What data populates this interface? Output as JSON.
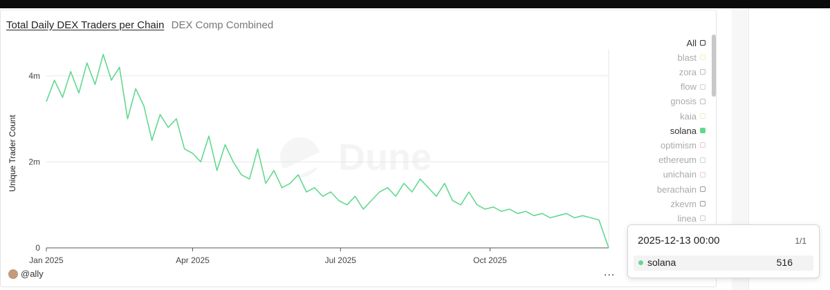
{
  "header": {
    "title": "Total Daily DEX Traders per Chain",
    "subtitle": "DEX Comp Combined"
  },
  "watermark": "Dune",
  "legend": {
    "items": [
      {
        "label": "All",
        "active": true,
        "color": "#333333"
      },
      {
        "label": "blast",
        "active": false,
        "color": "#f0f0c0"
      },
      {
        "label": "zora",
        "active": false,
        "color": "#bbbbbb"
      },
      {
        "label": "flow",
        "active": false,
        "color": "#cfcfcf"
      },
      {
        "label": "gnosis",
        "active": false,
        "color": "#bbbbbb"
      },
      {
        "label": "kaia",
        "active": false,
        "color": "#ecefc8"
      },
      {
        "label": "solana",
        "active": true,
        "color": "#62d88f"
      },
      {
        "label": "optimism",
        "active": false,
        "color": "#f2c4c4"
      },
      {
        "label": "ethereum",
        "active": false,
        "color": "#cfcfcf"
      },
      {
        "label": "unichain",
        "active": false,
        "color": "#f0c8d8"
      },
      {
        "label": "berachain",
        "active": false,
        "color": "#999999"
      },
      {
        "label": "zkevm",
        "active": false,
        "color": "#999999"
      },
      {
        "label": "linea",
        "active": false,
        "color": "#cccccc"
      }
    ]
  },
  "tooltip": {
    "date": "2025-12-13 00:00",
    "page": "1/1",
    "series": "solana",
    "value": "516"
  },
  "footer": {
    "author": "@ally",
    "more": "..."
  },
  "chart_data": {
    "type": "line",
    "title": "Total Daily DEX Traders per Chain",
    "subtitle": "DEX Comp Combined",
    "ylabel": "Unique Trader Count",
    "xlabel": "",
    "x_start": "2025-01-01",
    "x_end": "2025-12-13",
    "x_ticks": [
      {
        "label": "Jan 2025",
        "date": "2025-01-01"
      },
      {
        "label": "Apr 2025",
        "date": "2025-04-01"
      },
      {
        "label": "Jul 2025",
        "date": "2025-07-01"
      },
      {
        "label": "Oct 2025",
        "date": "2025-10-01"
      }
    ],
    "y_ticks": [
      {
        "label": "0",
        "value": 0
      },
      {
        "label": "2m",
        "value": 2000000
      },
      {
        "label": "4m",
        "value": 4000000
      }
    ],
    "ylim": [
      0,
      4800000
    ],
    "grid": true,
    "legend_position": "right",
    "series": [
      {
        "name": "solana",
        "color": "#62d88f",
        "x": [
          "2025-01-01",
          "2025-01-06",
          "2025-01-11",
          "2025-01-16",
          "2025-01-21",
          "2025-01-26",
          "2025-01-31",
          "2025-02-05",
          "2025-02-10",
          "2025-02-15",
          "2025-02-20",
          "2025-02-25",
          "2025-03-02",
          "2025-03-07",
          "2025-03-12",
          "2025-03-17",
          "2025-03-22",
          "2025-03-27",
          "2025-04-01",
          "2025-04-06",
          "2025-04-11",
          "2025-04-16",
          "2025-04-21",
          "2025-04-26",
          "2025-05-01",
          "2025-05-06",
          "2025-05-11",
          "2025-05-16",
          "2025-05-21",
          "2025-05-26",
          "2025-05-31",
          "2025-06-05",
          "2025-06-10",
          "2025-06-15",
          "2025-06-20",
          "2025-06-25",
          "2025-06-30",
          "2025-07-05",
          "2025-07-10",
          "2025-07-15",
          "2025-07-20",
          "2025-07-25",
          "2025-07-30",
          "2025-08-04",
          "2025-08-09",
          "2025-08-14",
          "2025-08-19",
          "2025-08-24",
          "2025-08-29",
          "2025-09-03",
          "2025-09-08",
          "2025-09-13",
          "2025-09-18",
          "2025-09-23",
          "2025-09-28",
          "2025-10-03",
          "2025-10-08",
          "2025-10-13",
          "2025-10-18",
          "2025-10-23",
          "2025-10-28",
          "2025-11-02",
          "2025-11-07",
          "2025-11-12",
          "2025-11-17",
          "2025-11-22",
          "2025-11-27",
          "2025-12-02",
          "2025-12-07",
          "2025-12-13"
        ],
        "y": [
          3400000,
          3900000,
          3500000,
          4100000,
          3600000,
          4300000,
          3800000,
          4500000,
          3900000,
          4200000,
          3000000,
          3700000,
          3300000,
          2500000,
          3100000,
          2800000,
          3000000,
          2300000,
          2200000,
          2000000,
          2600000,
          1800000,
          2400000,
          2000000,
          1700000,
          1600000,
          2300000,
          1500000,
          1800000,
          1400000,
          1500000,
          1700000,
          1300000,
          1400000,
          1200000,
          1300000,
          1100000,
          1000000,
          1200000,
          900000,
          1100000,
          1300000,
          1400000,
          1200000,
          1500000,
          1300000,
          1600000,
          1400000,
          1200000,
          1500000,
          1100000,
          1000000,
          1300000,
          1000000,
          900000,
          950000,
          850000,
          900000,
          800000,
          850000,
          750000,
          800000,
          700000,
          750000,
          800000,
          700000,
          750000,
          700000,
          650000,
          516
        ]
      }
    ]
  }
}
